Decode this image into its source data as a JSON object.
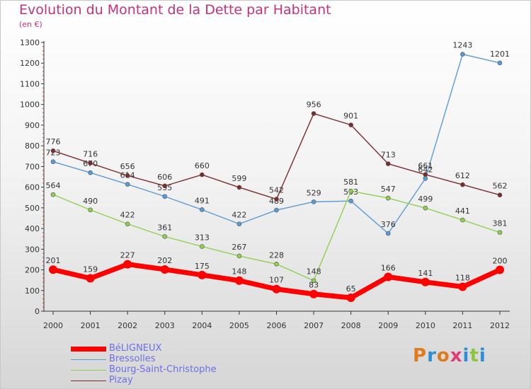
{
  "title": "Evolution du Montant de la Dette par Habitant",
  "subtitle": "(en €)",
  "logo": {
    "text": "Proxiti",
    "letters": [
      {
        "ch": "P",
        "color": "#e07a1f"
      },
      {
        "ch": "r",
        "color": "#2a8fd6"
      },
      {
        "ch": "o",
        "color": "#e07a1f"
      },
      {
        "ch": "x",
        "color": "#e03c7a"
      },
      {
        "ch": "i",
        "color": "#2a8fd6"
      },
      {
        "ch": "t",
        "color": "#8cc63f"
      },
      {
        "ch": "i",
        "color": "#2a8fd6"
      }
    ]
  },
  "chart_data": {
    "type": "line",
    "title": "Evolution du Montant de la Dette par Habitant",
    "subtitle": "(en €)",
    "x": [
      "2000",
      "2001",
      "2002",
      "2003",
      "2004",
      "2005",
      "2006",
      "2007",
      "2008",
      "2009",
      "2010",
      "2011",
      "2012"
    ],
    "ylim": [
      0,
      1300
    ],
    "yticks": [
      0,
      100,
      200,
      300,
      400,
      500,
      600,
      700,
      800,
      900,
      1000,
      1100,
      1200,
      1300
    ],
    "grid": false,
    "legend_position": "bottom-left",
    "series": [
      {
        "name": "BéLIGNEUX",
        "color": "#ff0000",
        "emphasis": true,
        "values": [
          201,
          159,
          227,
          202,
          175,
          148,
          107,
          83,
          65,
          166,
          141,
          118,
          200
        ]
      },
      {
        "name": "Bressolles",
        "color": "#5b9bd5",
        "emphasis": false,
        "values": [
          723,
          670,
          614,
          555,
          491,
          422,
          489,
          529,
          533,
          376,
          642,
          1243,
          1201
        ]
      },
      {
        "name": "Bourg-Saint-Christophe",
        "color": "#90d050",
        "emphasis": false,
        "values": [
          564,
          490,
          422,
          361,
          313,
          267,
          228,
          148,
          581,
          547,
          499,
          441,
          381
        ]
      },
      {
        "name": "Pizay",
        "color": "#7b2d2d",
        "emphasis": false,
        "values": [
          776,
          716,
          656,
          606,
          660,
          599,
          542,
          956,
          901,
          713,
          661,
          612,
          562
        ]
      }
    ]
  }
}
